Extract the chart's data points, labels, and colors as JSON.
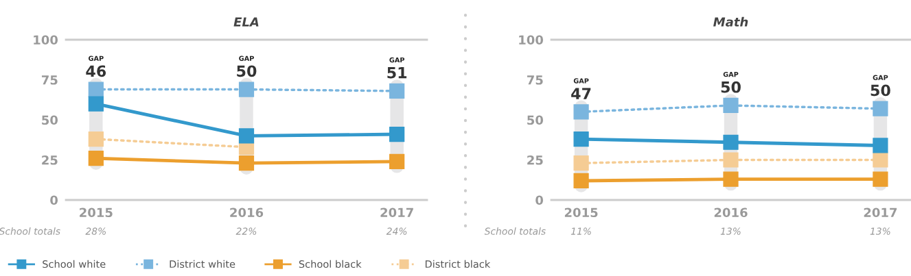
{
  "chart_data": [
    {
      "type": "line",
      "title": "ELA",
      "categories": [
        "2015",
        "2016",
        "2017"
      ],
      "ylim": [
        0,
        100
      ],
      "yticks": [
        0,
        25,
        50,
        75,
        100
      ],
      "grid": false,
      "legend": "bottom",
      "marker": "square",
      "series": [
        {
          "name": "School white",
          "color": "#3399cc",
          "values": [
            60,
            40,
            41
          ],
          "line_style": "solid"
        },
        {
          "name": "District white",
          "color": "#7ab5de",
          "values": [
            69,
            69,
            68
          ],
          "line_style": "dotted"
        },
        {
          "name": "School black",
          "color": "#ec9f2e",
          "values": [
            26,
            23,
            24
          ],
          "line_style": "solid"
        },
        {
          "name": "District black",
          "color": "#f5cc94",
          "values": [
            38,
            33,
            null
          ],
          "line_style": "dotted"
        }
      ],
      "annotations": [
        "GAP\n46",
        "GAP\n50",
        "GAP\n51",
        "School totals",
        "28%",
        "22%",
        "24%"
      ]
    },
    {
      "type": "line",
      "title": "Math",
      "categories": [
        "2015",
        "2016",
        "2017"
      ],
      "ylim": [
        0,
        100
      ],
      "yticks": [
        0,
        25,
        50,
        75,
        100
      ],
      "grid": false,
      "marker": "square",
      "series": [
        {
          "color": "#3399cc",
          "values": [
            38,
            36,
            34
          ],
          "line_style": "solid"
        },
        {
          "color": "#7ab5de",
          "values": [
            55,
            59,
            57
          ],
          "line_style": "dotted"
        },
        {
          "color": "#ec9f2e",
          "values": [
            12,
            13,
            13
          ],
          "line_style": "solid"
        },
        {
          "color": "#f5cc94",
          "values": [
            23,
            25,
            25
          ],
          "line_style": "dotted"
        }
      ],
      "annotations": [
        "GAP\n47",
        "GAP\n50",
        "GAP\n50",
        "School totals",
        "11%",
        "13%",
        "13%"
      ]
    }
  ]
}
